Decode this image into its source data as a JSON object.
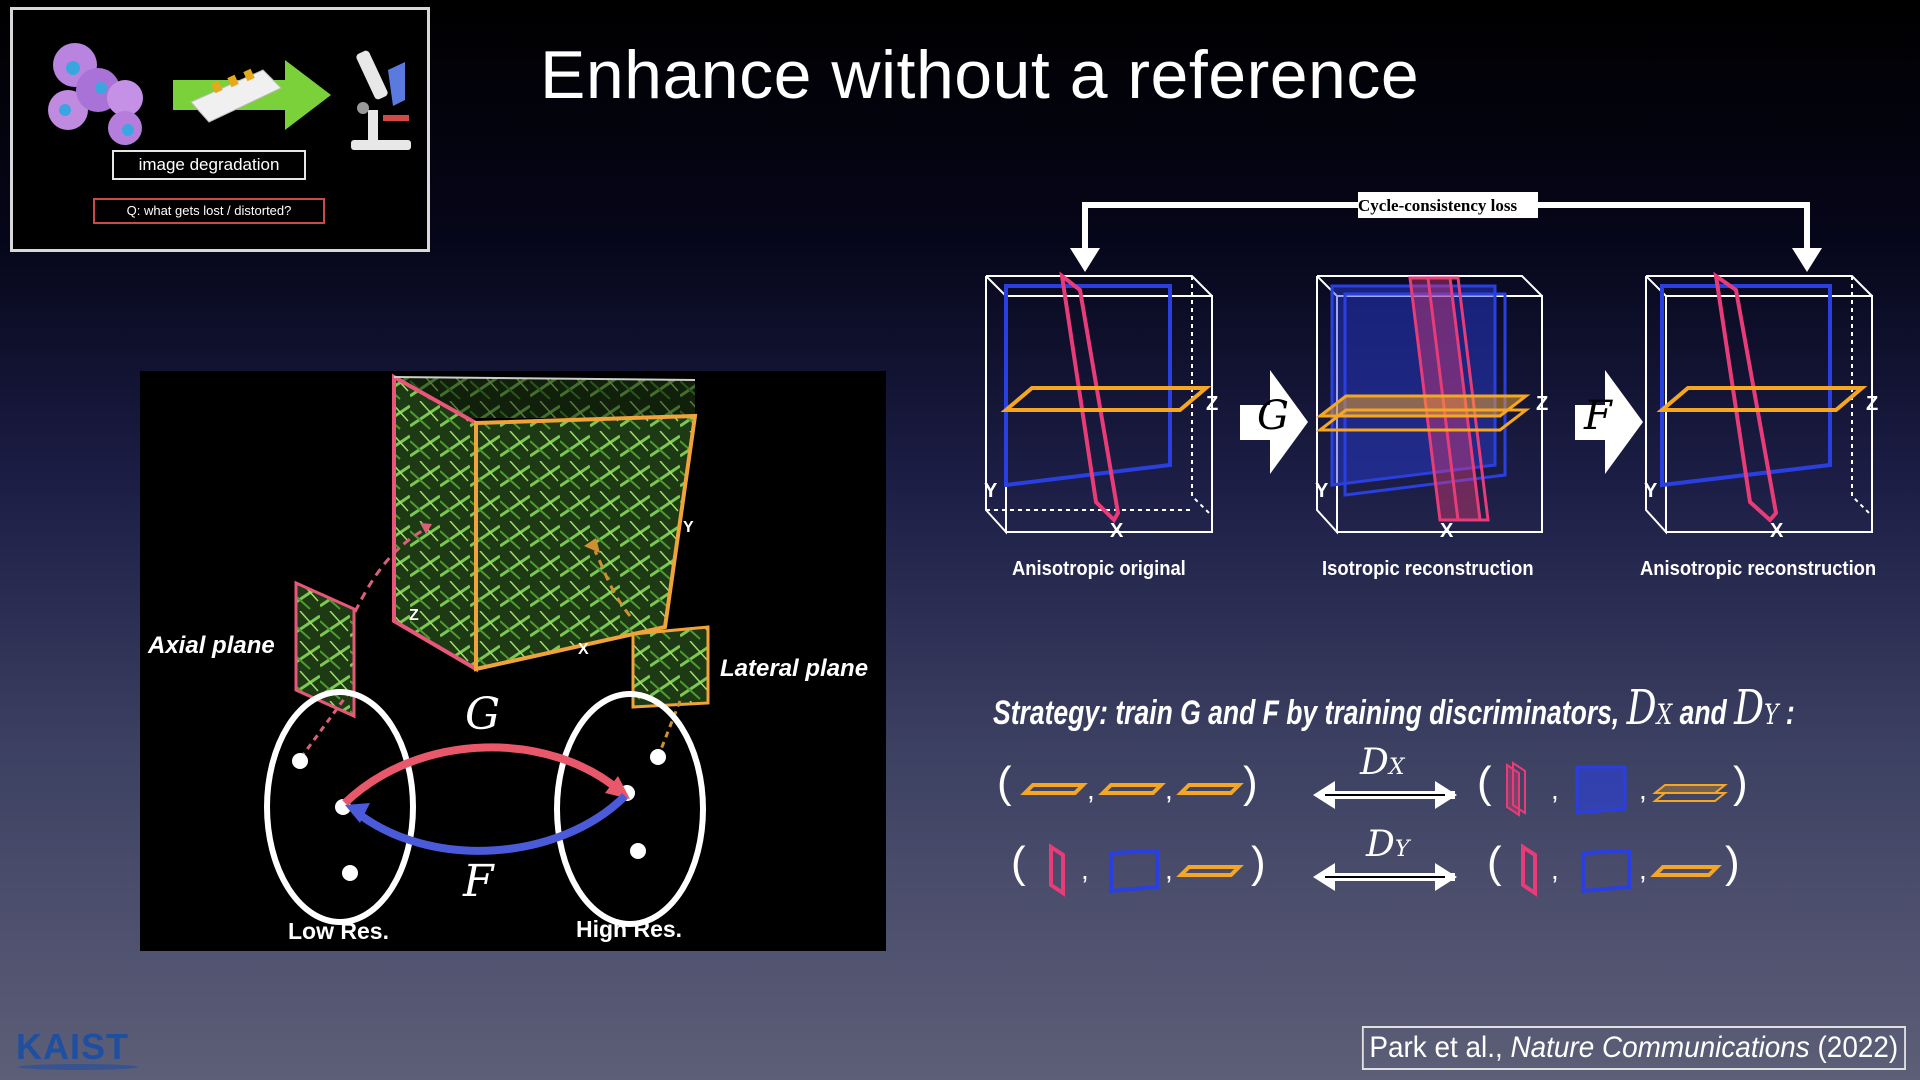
{
  "slide": {
    "title": "Enhance without a reference",
    "thumbnail": {
      "label": "image degradation",
      "question": "Q: what gets lost / distorted?"
    },
    "left_figure": {
      "axial_label": "Axial plane",
      "lateral_label": "Lateral plane",
      "axis_z": "Z",
      "axis_x": "X",
      "axis_y": "Y",
      "g_label": "G",
      "f_label": "F",
      "low_res": "Low Res.",
      "high_res": "High Res."
    },
    "right_figure": {
      "cycle_label": "Cycle-consistency loss",
      "g_arrow": "G",
      "f_arrow": "F",
      "axis_z": "Z",
      "axis_y": "Y",
      "axis_x": "X",
      "captions": [
        "Anisotropic original",
        "Isotropic reconstruction",
        "Anisotropic reconstruction"
      ]
    },
    "strategy": {
      "text": "Strategy: train G and F by training discriminators,",
      "dx": "D",
      "dx_sub": "X",
      "and": "and",
      "dy": "D",
      "dy_sub": "Y",
      "colon": ":"
    },
    "discriminators": {
      "dx_label": "D",
      "dx_sub": "X",
      "dy_label": "D",
      "dy_sub": "Y"
    },
    "citation": {
      "authors": "Park et al.,",
      "journal": "Nature Communications",
      "year": "(2022)"
    },
    "logo": "KAIST",
    "colors": {
      "pink": "#e83c78",
      "blue": "#2a3fe0",
      "orange": "#f5a623",
      "gen_arrow_g": "#e8576a",
      "gen_arrow_f": "#4a5ad8"
    }
  }
}
